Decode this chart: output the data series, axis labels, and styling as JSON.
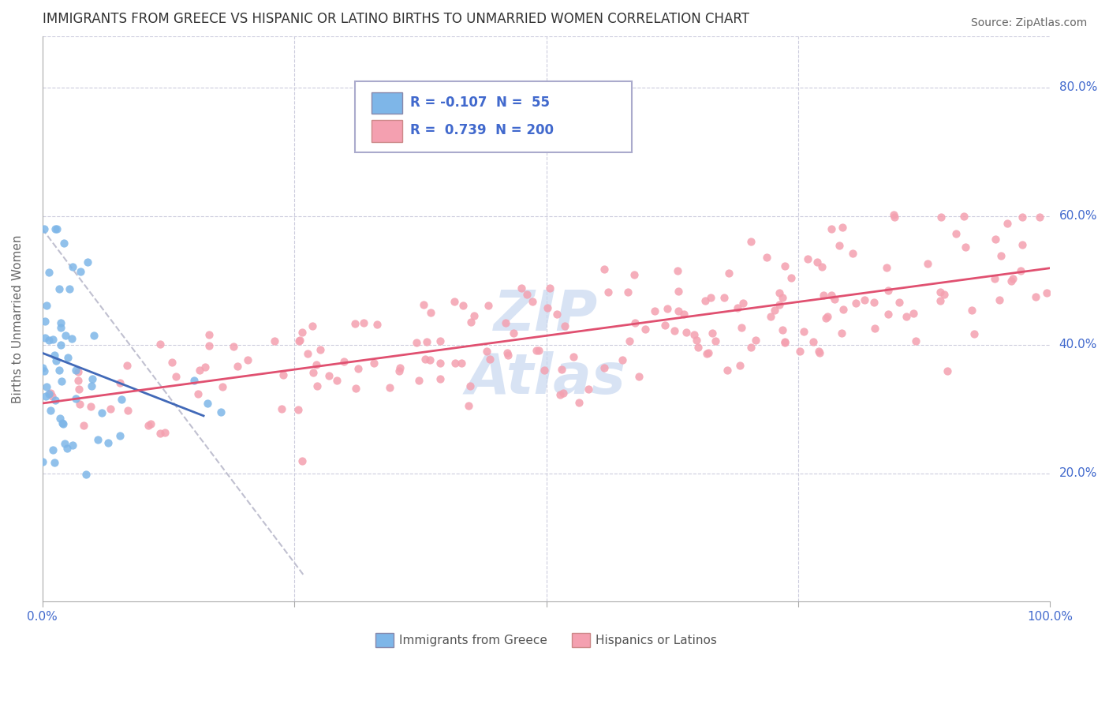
{
  "title": "IMMIGRANTS FROM GREECE VS HISPANIC OR LATINO BIRTHS TO UNMARRIED WOMEN CORRELATION CHART",
  "source": "Source: ZipAtlas.com",
  "ylabel": "Births to Unmarried Women",
  "legend1_label": "R = -0.107  N =  55",
  "legend2_label": "R =  0.739  N = 200",
  "legend_bottom_label1": "Immigrants from Greece",
  "legend_bottom_label2": "Hispanics or Latinos",
  "blue_color": "#7EB6E8",
  "pink_color": "#F4A0B0",
  "blue_line_color": "#4169B8",
  "pink_line_color": "#E05070",
  "dashed_line_color": "#C0C0D0",
  "title_color": "#333333",
  "axis_label_color": "#4169CD",
  "watermark_color": "#C8D8F0",
  "grid_color": "#CCCCDD",
  "ytick_values": [
    0.2,
    0.4,
    0.6,
    0.8
  ],
  "ytick_labels": [
    "20.0%",
    "40.0%",
    "60.0%",
    "80.0%"
  ],
  "xtick_values": [
    0.0,
    0.25,
    0.5,
    0.75,
    1.0
  ],
  "xtick_labels": [
    "0.0%",
    "",
    "",
    "",
    "100.0%"
  ],
  "xlim": [
    0.0,
    1.0
  ],
  "ylim": [
    0.0,
    0.88
  ]
}
